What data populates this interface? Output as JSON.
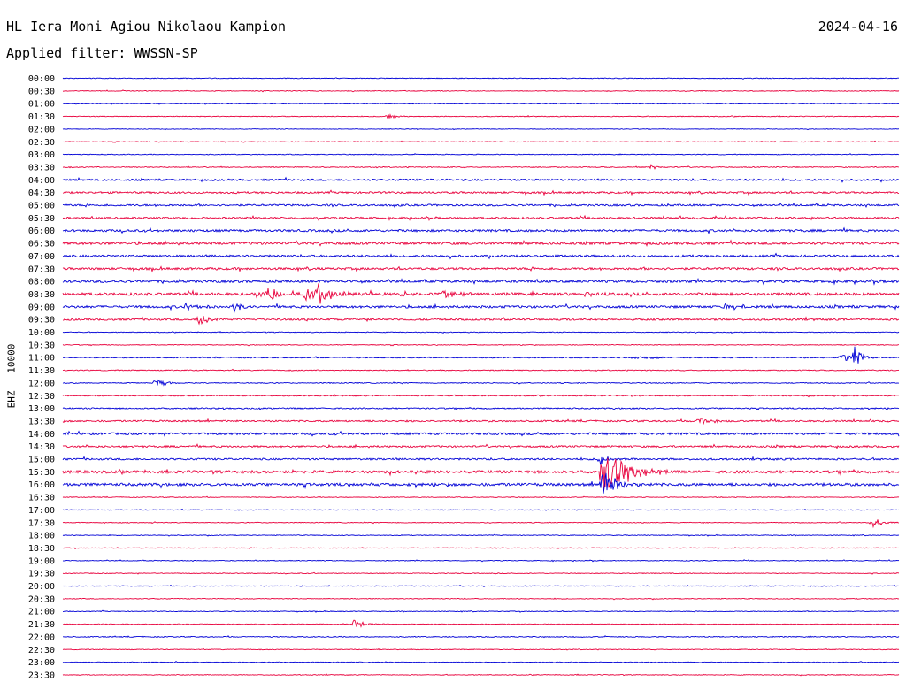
{
  "header": {
    "station_title": "HL Iera Moni Agiou Nikolaou Kampion",
    "date": "2024-04-16",
    "filter_prefix": "Applied filter: ",
    "filter_name": "WWSSN-SP"
  },
  "channel_label": "EHZ - 10000",
  "colors": {
    "trace_even": "#0000d6",
    "trace_odd": "#e8003c",
    "background": "#ffffff",
    "text": "#000000"
  },
  "chart_data": {
    "type": "line",
    "subtype": "helicorder",
    "title": "",
    "ylabel": "EHZ - 10000",
    "y_tick_labels": [
      "00:00",
      "00:30",
      "01:00",
      "01:30",
      "02:00",
      "02:30",
      "03:00",
      "03:30",
      "04:00",
      "04:30",
      "05:00",
      "05:30",
      "06:00",
      "06:30",
      "07:00",
      "07:30",
      "08:00",
      "08:30",
      "09:00",
      "09:30",
      "10:00",
      "10:30",
      "11:00",
      "11:30",
      "12:00",
      "12:30",
      "13:00",
      "13:30",
      "14:00",
      "14:30",
      "15:00",
      "15:30",
      "16:00",
      "16:30",
      "17:00",
      "17:30",
      "18:00",
      "18:30",
      "19:00",
      "19:30",
      "20:00",
      "20:30",
      "21:00",
      "21:30",
      "22:00",
      "22:30",
      "23:00",
      "23:30"
    ],
    "grid": false,
    "series": [
      {
        "row": "08:30",
        "activity": "bursts"
      },
      {
        "row": "09:00",
        "activity": "bursts"
      },
      {
        "row": "11:00",
        "activity": "event"
      },
      {
        "row": "15:30",
        "activity": "large event"
      }
    ]
  }
}
